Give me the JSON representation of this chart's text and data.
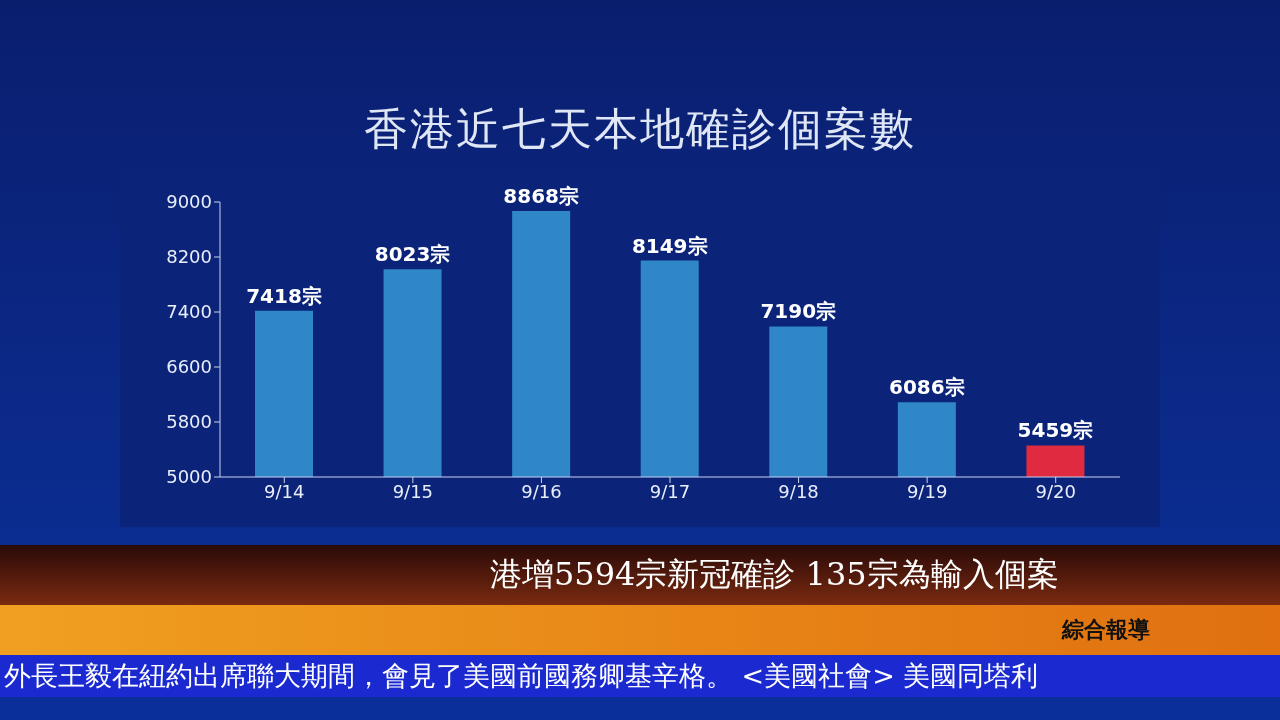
{
  "chart_data": {
    "type": "bar",
    "title": "香港近七天本地確診個案數",
    "categories": [
      "9/14",
      "9/15",
      "9/16",
      "9/17",
      "9/18",
      "9/19",
      "9/20"
    ],
    "values": [
      7418,
      8023,
      8868,
      8149,
      7190,
      6086,
      5459
    ],
    "colors": [
      "#2f86c8",
      "#2f86c8",
      "#2f86c8",
      "#2f86c8",
      "#2f86c8",
      "#2f86c8",
      "#e02a40"
    ],
    "value_labels": [
      "7418宗",
      "8023宗",
      "8868宗",
      "8149宗",
      "7190宗",
      "6086宗",
      "5459宗"
    ],
    "ylim": [
      5000,
      9000
    ],
    "yticks": [
      5000,
      5800,
      6600,
      7400,
      8200,
      9000
    ],
    "annotations": [
      "港增5594宗新冠確診 135宗為輸入個案",
      "綜合報導",
      "外長王毅在紐約出席聯大期間，會見了美國前國務卿基辛格。 <美國社會> 美國同塔利"
    ]
  }
}
